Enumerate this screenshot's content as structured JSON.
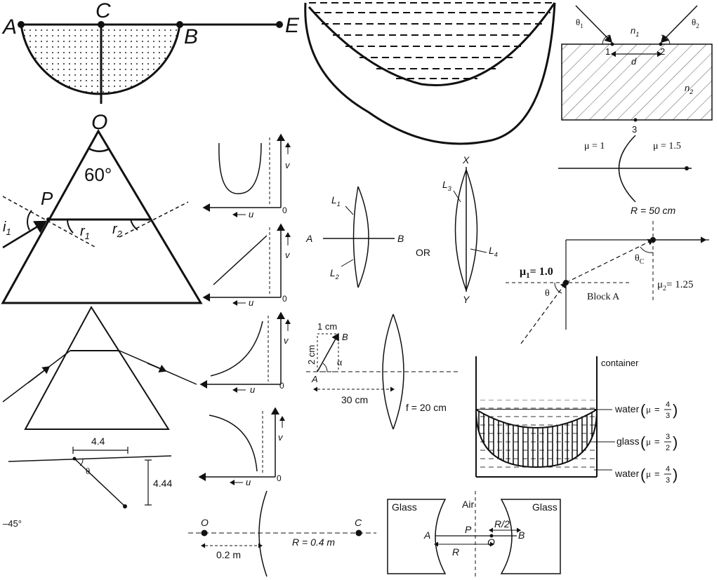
{
  "hemisphere": {
    "A": "A",
    "C": "C",
    "B": "B",
    "E": "E",
    "O": "O"
  },
  "prism60": {
    "P": "P",
    "angle": "60°",
    "i1": "i",
    "i1_sub": "1",
    "r1": "r",
    "r1_sub": "1",
    "r2": "r",
    "r2_sub": "2"
  },
  "graphs": {
    "u": "u",
    "v": "v",
    "origin": "0"
  },
  "lens_combo": {
    "A": "A",
    "B": "B",
    "L1": "L",
    "L1_sub": "1",
    "L2": "L",
    "L2_sub": "2",
    "or": "OR",
    "X": "X",
    "Y": "Y",
    "L3": "L",
    "L3_sub": "3",
    "L4": "L",
    "L4_sub": "4"
  },
  "slab": {
    "theta1": "θ",
    "theta1_sub": "1",
    "theta2": "θ",
    "theta2_sub": "2",
    "n1": "n",
    "n1_sub": "1",
    "n2": "n",
    "n2_sub": "2",
    "p1": "1",
    "p2": "2",
    "p3": "3",
    "d": "d"
  },
  "surface": {
    "mu1": "μ = 1",
    "mu2": "μ = 1.5",
    "R": "R = 50 cm"
  },
  "block": {
    "mu1": "μ",
    "mu1_sub": "1",
    "mu1_val": "= 1.0",
    "mu2": "μ",
    "mu2_sub": "2",
    "mu2_val": "= 1.25",
    "thetaC": "θ",
    "thetaC_sub": "C",
    "theta": "θ",
    "label": "Block A"
  },
  "object_lens": {
    "one_cm": "1 cm",
    "two_cm": "2 cm",
    "B": "B",
    "A": "A",
    "alpha": "α",
    "dist": "30 cm",
    "f": "f = 20 cm"
  },
  "container": {
    "title": "container",
    "water1": "water",
    "glass": "glass",
    "water2": "water",
    "mu": "μ",
    "eq": "=",
    "w_num": "4",
    "w_den": "3",
    "g_num": "3",
    "g_den": "2"
  },
  "deviation": {
    "w": "4.4",
    "h": "4.44",
    "theta": "θ",
    "angle": "–45°"
  },
  "mirror": {
    "O": "O",
    "C": "C",
    "d": "0.2 m",
    "R": "R = 0.4 m"
  },
  "glass_air": {
    "glass_left": "Glass",
    "air": "Air",
    "glass_right": "Glass",
    "A": "A",
    "P": "P",
    "O": "O",
    "B": "B",
    "R": "R",
    "R2": "R/2"
  }
}
